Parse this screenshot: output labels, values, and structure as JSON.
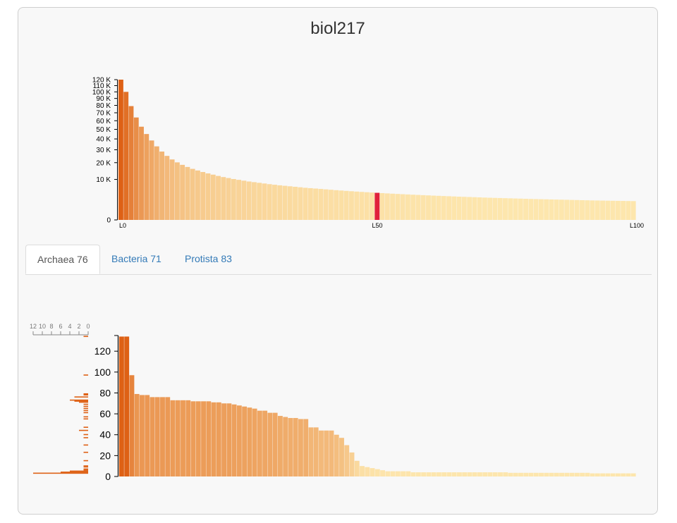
{
  "title": "biol217",
  "tabs": [
    {
      "label": "Archaea 76",
      "active": true
    },
    {
      "label": "Bacteria 71",
      "active": false
    },
    {
      "label": "Protista 83",
      "active": false
    }
  ],
  "colors": {
    "dark": "#de6115",
    "light": "#fde6ad",
    "highlight": "#e0213a"
  },
  "chart_data": [
    {
      "type": "bar",
      "description_scale": "sqrt",
      "y_tick_labels": [
        "0",
        "10 K",
        "20 K",
        "30 K",
        "40 K",
        "50 K",
        "60 K",
        "70 K",
        "80 K",
        "90 K",
        "100 K",
        "110 K",
        "120 K"
      ],
      "y_ticks": [
        0,
        10000,
        20000,
        30000,
        40000,
        50000,
        60000,
        70000,
        80000,
        90000,
        100000,
        110000,
        120000
      ],
      "ylim": [
        0,
        120000
      ],
      "x_tick_labels": [
        "L0",
        "L50",
        "L100"
      ],
      "x_ticks": [
        0,
        50,
        100
      ],
      "highlight_index": 50,
      "values": [
        120000,
        100000,
        79000,
        64000,
        53000,
        45000,
        38500,
        33000,
        28500,
        25000,
        22300,
        20200,
        18500,
        17100,
        15900,
        14900,
        14000,
        13200,
        12500,
        11800,
        11200,
        10700,
        10200,
        9800,
        9400,
        9000,
        8700,
        8400,
        8100,
        7800,
        7550,
        7300,
        7100,
        6900,
        6700,
        6500,
        6300,
        6150,
        6000,
        5850,
        5700,
        5550,
        5400,
        5270,
        5140,
        5020,
        4900,
        4790,
        4680,
        4580,
        4480,
        4380,
        4290,
        4200,
        4120,
        4040,
        3960,
        3880,
        3810,
        3740,
        3670,
        3600,
        3540,
        3480,
        3420,
        3360,
        3300,
        3250,
        3200,
        3150,
        3100,
        3050,
        3000,
        2960,
        2920,
        2880,
        2840,
        2800,
        2760,
        2720,
        2680,
        2650,
        2620,
        2590,
        2560,
        2530,
        2500,
        2470,
        2440,
        2410,
        2380,
        2350,
        2320,
        2300,
        2280,
        2260,
        2240,
        2220,
        2200,
        2180,
        2160
      ]
    },
    {
      "type": "bar",
      "y_tick_labels": [
        "0",
        "20",
        "40",
        "60",
        "80",
        "100",
        "120"
      ],
      "y_ticks": [
        0,
        20,
        40,
        60,
        80,
        100,
        120
      ],
      "ylim": [
        0,
        135
      ],
      "values": [
        134,
        134,
        97,
        79,
        78,
        78,
        76,
        76,
        76,
        76,
        73,
        73,
        73,
        73,
        72,
        72,
        72,
        72,
        71,
        71,
        70,
        70,
        69,
        68,
        67,
        66,
        65,
        63,
        63,
        61,
        61,
        58,
        57,
        56,
        56,
        55,
        55,
        47,
        47,
        44,
        44,
        44,
        40,
        37,
        30,
        23,
        15,
        10,
        9,
        8,
        7,
        6,
        5,
        5,
        5,
        5,
        5,
        4,
        4,
        4,
        4,
        4,
        4,
        4,
        4,
        4,
        4,
        4,
        4,
        4,
        4,
        4,
        4,
        4,
        4,
        4,
        3.5,
        3.5,
        3.5,
        3.5,
        3.5,
        3.5,
        3.5,
        3.5,
        3.5,
        3.5,
        3.5,
        3.5,
        3.5,
        3.5,
        3.5,
        3.5,
        3,
        3,
        3,
        3,
        3,
        3,
        3,
        3,
        3
      ]
    },
    {
      "type": "bar",
      "orientation": "horizontal",
      "x_tick_labels": [
        "12",
        "10",
        "8",
        "6",
        "4",
        "2",
        "0"
      ],
      "x_ticks": [
        12,
        10,
        8,
        6,
        4,
        2,
        0
      ],
      "xlim": [
        0,
        12
      ],
      "bins": [
        {
          "y": 3,
          "count": 12
        },
        {
          "y": 4,
          "count": 6
        },
        {
          "y": 5,
          "count": 4
        },
        {
          "y": 6,
          "count": 1
        },
        {
          "y": 7,
          "count": 1
        },
        {
          "y": 9,
          "count": 1
        },
        {
          "y": 10,
          "count": 1
        },
        {
          "y": 15,
          "count": 1
        },
        {
          "y": 23,
          "count": 1
        },
        {
          "y": 30,
          "count": 1
        },
        {
          "y": 37,
          "count": 1
        },
        {
          "y": 40,
          "count": 1
        },
        {
          "y": 44,
          "count": 2
        },
        {
          "y": 47,
          "count": 1
        },
        {
          "y": 55,
          "count": 1
        },
        {
          "y": 57,
          "count": 1
        },
        {
          "y": 61,
          "count": 1
        },
        {
          "y": 63,
          "count": 1
        },
        {
          "y": 65,
          "count": 1
        },
        {
          "y": 67,
          "count": 1
        },
        {
          "y": 69,
          "count": 1
        },
        {
          "y": 71,
          "count": 2
        },
        {
          "y": 72,
          "count": 3
        },
        {
          "y": 73,
          "count": 4
        },
        {
          "y": 76,
          "count": 3
        },
        {
          "y": 78,
          "count": 1
        },
        {
          "y": 79,
          "count": 1
        },
        {
          "y": 97,
          "count": 1
        },
        {
          "y": 134,
          "count": 1
        }
      ]
    }
  ]
}
